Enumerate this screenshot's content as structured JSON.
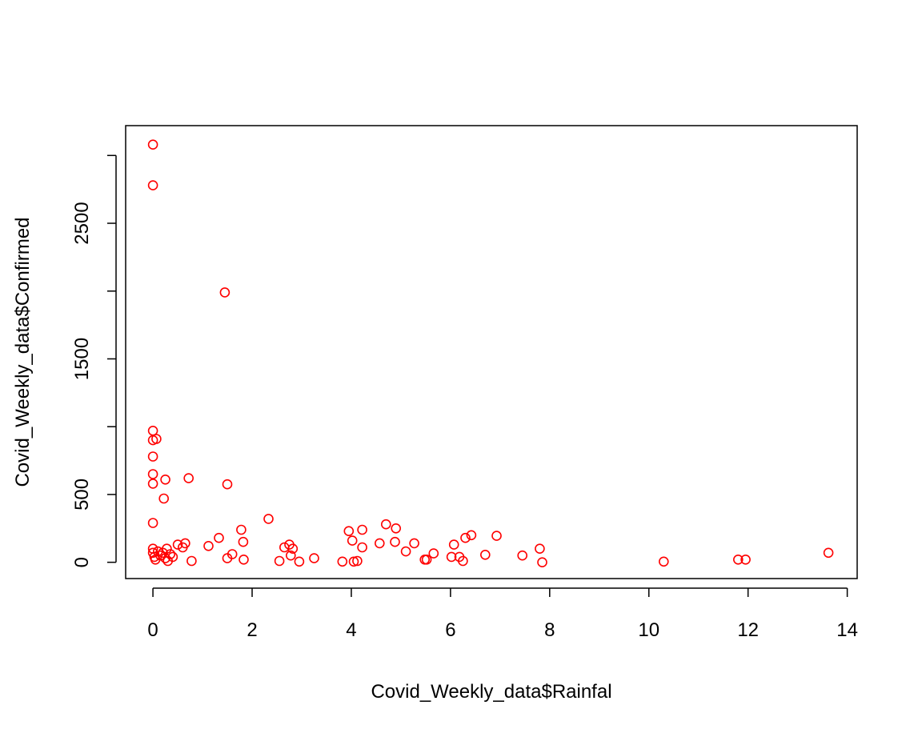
{
  "chart_data": {
    "type": "scatter",
    "xlabel": "Covid_Weekly_data$Rainfal",
    "ylabel": "Covid_Weekly_data$Confirmed",
    "xlim": [
      -0.55,
      14.2
    ],
    "ylim": [
      -120,
      3220
    ],
    "x_ticks": [
      0,
      2,
      4,
      6,
      8,
      10,
      12,
      14
    ],
    "y_ticks": [
      0,
      500,
      1500,
      2500
    ],
    "grid": false,
    "point_color": "#ff0000",
    "points": [
      [
        0.0,
        3080
      ],
      [
        0.0,
        2780
      ],
      [
        1.45,
        1990
      ],
      [
        0.0,
        970
      ],
      [
        0.0,
        900
      ],
      [
        0.07,
        910
      ],
      [
        0.0,
        780
      ],
      [
        0.0,
        650
      ],
      [
        0.0,
        580
      ],
      [
        0.25,
        610
      ],
      [
        0.72,
        620
      ],
      [
        1.5,
        575
      ],
      [
        0.22,
        470
      ],
      [
        0.0,
        290
      ],
      [
        0.0,
        100
      ],
      [
        0.0,
        70
      ],
      [
        0.03,
        40
      ],
      [
        0.05,
        20
      ],
      [
        0.1,
        80
      ],
      [
        0.15,
        50
      ],
      [
        0.2,
        70
      ],
      [
        0.25,
        30
      ],
      [
        0.28,
        100
      ],
      [
        0.3,
        10
      ],
      [
        0.35,
        60
      ],
      [
        0.4,
        40
      ],
      [
        0.5,
        130
      ],
      [
        0.6,
        110
      ],
      [
        0.65,
        140
      ],
      [
        0.78,
        10
      ],
      [
        1.12,
        120
      ],
      [
        1.33,
        180
      ],
      [
        1.5,
        30
      ],
      [
        1.6,
        60
      ],
      [
        1.78,
        240
      ],
      [
        1.82,
        150
      ],
      [
        1.83,
        20
      ],
      [
        2.33,
        320
      ],
      [
        2.55,
        10
      ],
      [
        2.65,
        110
      ],
      [
        2.75,
        130
      ],
      [
        2.78,
        50
      ],
      [
        2.82,
        100
      ],
      [
        2.95,
        5
      ],
      [
        3.25,
        30
      ],
      [
        3.82,
        5
      ],
      [
        3.95,
        230
      ],
      [
        4.02,
        160
      ],
      [
        4.05,
        5
      ],
      [
        4.12,
        10
      ],
      [
        4.22,
        240
      ],
      [
        4.22,
        110
      ],
      [
        4.57,
        140
      ],
      [
        4.7,
        280
      ],
      [
        4.88,
        150
      ],
      [
        4.9,
        250
      ],
      [
        5.1,
        80
      ],
      [
        5.27,
        140
      ],
      [
        5.48,
        20
      ],
      [
        5.52,
        20
      ],
      [
        5.66,
        65
      ],
      [
        6.02,
        40
      ],
      [
        6.07,
        130
      ],
      [
        6.18,
        40
      ],
      [
        6.25,
        10
      ],
      [
        6.3,
        180
      ],
      [
        6.42,
        200
      ],
      [
        6.7,
        55
      ],
      [
        6.93,
        195
      ],
      [
        7.45,
        50
      ],
      [
        7.8,
        100
      ],
      [
        7.85,
        0
      ],
      [
        10.3,
        5
      ],
      [
        11.8,
        20
      ],
      [
        11.95,
        20
      ],
      [
        13.62,
        70
      ]
    ]
  }
}
